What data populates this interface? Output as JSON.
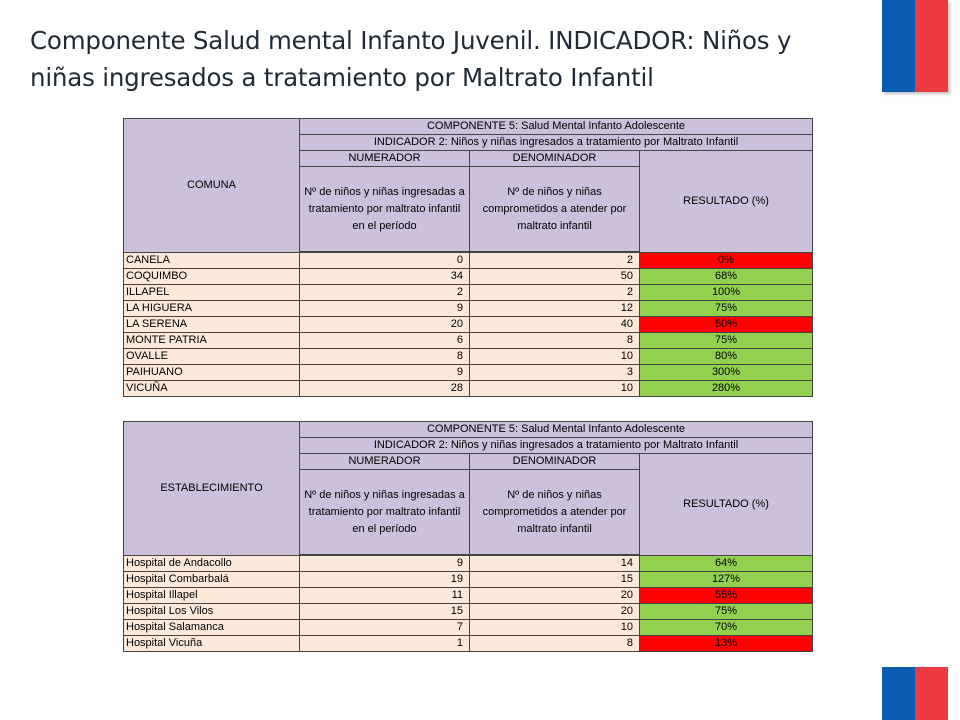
{
  "title": "Componente Salud mental Infanto Juvenil. INDICADOR: Niños y niñas ingresados a tratamiento por Maltrato Infantil",
  "colors": {
    "header": "#ccc0da",
    "row": "#fde9d9",
    "good": "#92d050",
    "bad": "#ff0000"
  },
  "table1": {
    "first_col": "COMUNA",
    "component": "COMPONENTE 5: Salud Mental Infanto Adolescente",
    "indicator": "INDICADOR 2: Niños y niñas ingresados a tratamiento por Maltrato Infantil",
    "numerador": "NUMERADOR",
    "denominador": "DENOMINADOR",
    "resultado": "RESULTADO (%)",
    "num_desc": "Nº de niños y niñas ingresadas a tratamiento por maltrato infantil en el período",
    "den_desc": "Nº de niños y niñas comprometidos a atender por maltrato infantil",
    "rows": [
      {
        "name": "CANELA",
        "num": "0",
        "den": "2",
        "res": "0%",
        "status": "bad"
      },
      {
        "name": "COQUIMBO",
        "num": "34",
        "den": "50",
        "res": "68%",
        "status": "good"
      },
      {
        "name": "ILLAPEL",
        "num": "2",
        "den": "2",
        "res": "100%",
        "status": "good"
      },
      {
        "name": "LA HIGUERA",
        "num": "9",
        "den": "12",
        "res": "75%",
        "status": "good"
      },
      {
        "name": "LA SERENA",
        "num": "20",
        "den": "40",
        "res": "50%",
        "status": "bad"
      },
      {
        "name": "MONTE PATRIA",
        "num": "6",
        "den": "8",
        "res": "75%",
        "status": "good"
      },
      {
        "name": "OVALLE",
        "num": "8",
        "den": "10",
        "res": "80%",
        "status": "good"
      },
      {
        "name": "PAIHUANO",
        "num": "9",
        "den": "3",
        "res": "300%",
        "status": "good"
      },
      {
        "name": "VICUÑA",
        "num": "28",
        "den": "10",
        "res": "280%",
        "status": "good"
      }
    ]
  },
  "table2": {
    "first_col": "ESTABLECIMIENTO",
    "component": "COMPONENTE 5: Salud Mental Infanto Adolescente",
    "indicator": "INDICADOR 2: Niños y niñas ingresados a tratamiento por Maltrato Infantil",
    "numerador": "NUMERADOR",
    "denominador": "DENOMINADOR",
    "resultado": "RESULTADO (%)",
    "num_desc": "Nº de niños y niñas ingresadas a tratamiento por maltrato infantil en el período",
    "den_desc": "Nº de niños y niñas comprometidos a atender por maltrato infantil",
    "rows": [
      {
        "name": "Hospital de  Andacollo",
        "num": "9",
        "den": "14",
        "res": "64%",
        "status": "good"
      },
      {
        "name": "Hospital Combarbalá",
        "num": "19",
        "den": "15",
        "res": "127%",
        "status": "good"
      },
      {
        "name": "Hospital Illapel",
        "num": "11",
        "den": "20",
        "res": "55%",
        "status": "bad"
      },
      {
        "name": "Hospital  Los Vilos",
        "num": "15",
        "den": "20",
        "res": "75%",
        "status": "good"
      },
      {
        "name": "Hospital Salamanca",
        "num": "7",
        "den": "10",
        "res": "70%",
        "status": "good"
      },
      {
        "name": "Hospital Vicuña",
        "num": "1",
        "den": "8",
        "res": "13%",
        "status": "bad"
      }
    ]
  }
}
